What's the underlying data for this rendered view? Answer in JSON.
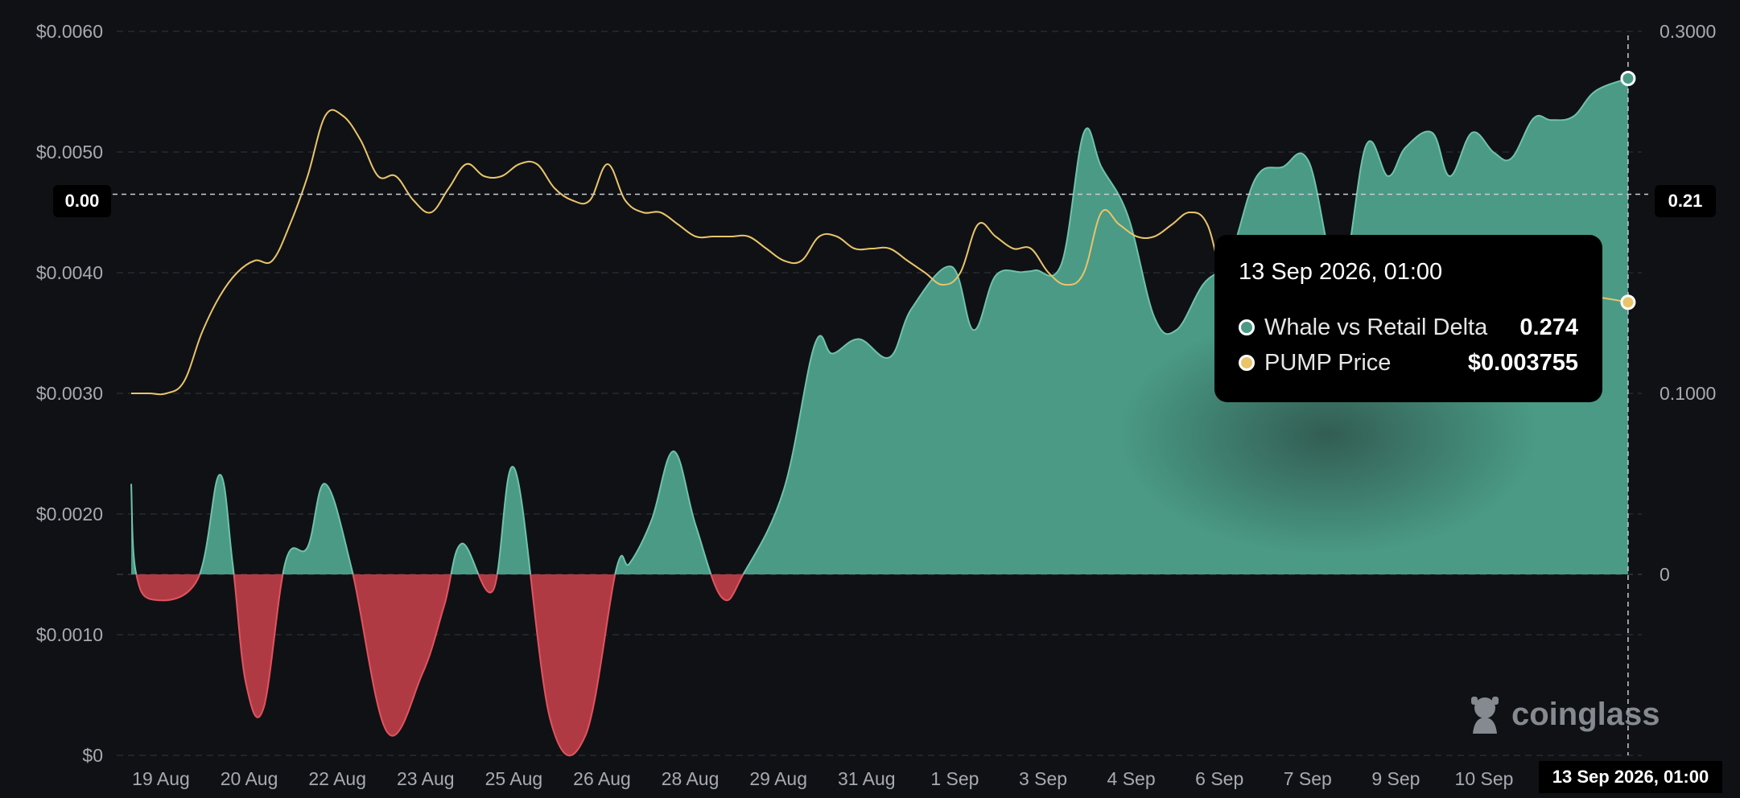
{
  "chart_data": {
    "type": "area",
    "x_ticks": [
      "19 Aug",
      "20 Aug",
      "22 Aug",
      "23 Aug",
      "25 Aug",
      "26 Aug",
      "28 Aug",
      "29 Aug",
      "31 Aug",
      "1 Sep",
      "3 Sep",
      "4 Sep",
      "6 Sep",
      "7 Sep",
      "9 Sep",
      "10 Sep"
    ],
    "left_axis": {
      "ticks": [
        "$0.0060",
        "$0.0050",
        "$0.0040",
        "$0.0030",
        "$0.0020",
        "$0.0010",
        "$0"
      ],
      "ylim": [
        0,
        0.006
      ]
    },
    "right_axis": {
      "ticks": [
        "0.3000",
        "0.1000",
        "0"
      ],
      "ylim": [
        -0.1,
        0.3
      ]
    },
    "grid": true,
    "series": [
      {
        "name": "Whale vs Retail Delta",
        "axis": "right",
        "positive_color": "#4a9a86",
        "negative_color": "#b03a44",
        "x": [
          0,
          0.05,
          0.25,
          0.75,
          1.0,
          1.15,
          1.3,
          1.5,
          1.75,
          2.0,
          2.2,
          2.5,
          2.9,
          3.3,
          3.55,
          3.75,
          4.1,
          4.35,
          4.75,
          5.15,
          5.5,
          5.65,
          5.9,
          6.15,
          6.4,
          6.7,
          6.95,
          7.4,
          7.75,
          7.95,
          8.25,
          8.6,
          8.85,
          9.3,
          9.55,
          9.8,
          10.1,
          10.25,
          10.55,
          10.8,
          11.0,
          11.3,
          11.6,
          11.85,
          12.15,
          12.45,
          12.75,
          13.05,
          13.35,
          13.7,
          14.0,
          14.25,
          14.45,
          14.75,
          14.95,
          15.2,
          15.45,
          15.65,
          15.9,
          16.1,
          16.35,
          16.6,
          16.97
        ],
        "y": [
          0.05,
          0.002,
          -0.014,
          -0.003,
          0.055,
          0.006,
          -0.06,
          -0.074,
          0.007,
          0.015,
          0.05,
          0.003,
          -0.087,
          -0.055,
          -0.017,
          0.017,
          -0.009,
          0.058,
          -0.08,
          -0.089,
          0.003,
          0.006,
          0.03,
          0.068,
          0.027,
          -0.013,
          0.001,
          0.047,
          0.127,
          0.122,
          0.13,
          0.12,
          0.147,
          0.17,
          0.135,
          0.165,
          0.167,
          0.168,
          0.172,
          0.244,
          0.225,
          0.198,
          0.142,
          0.135,
          0.16,
          0.175,
          0.219,
          0.225,
          0.228,
          0.162,
          0.237,
          0.22,
          0.236,
          0.244,
          0.22,
          0.244,
          0.233,
          0.23,
          0.252,
          0.251,
          0.253,
          0.267,
          0.274
        ]
      },
      {
        "name": "PUMP Price",
        "axis": "left",
        "color": "#e9c46a",
        "x": [
          0,
          0.2,
          0.4,
          0.6,
          0.8,
          1.0,
          1.2,
          1.4,
          1.6,
          1.8,
          2.0,
          2.2,
          2.4,
          2.6,
          2.8,
          3.0,
          3.2,
          3.4,
          3.6,
          3.8,
          4.0,
          4.2,
          4.4,
          4.6,
          4.8,
          5.0,
          5.2,
          5.4,
          5.6,
          5.8,
          6.0,
          6.2,
          6.4,
          6.6,
          6.8,
          7.0,
          7.2,
          7.4,
          7.6,
          7.8,
          8.0,
          8.2,
          8.4,
          8.6,
          8.8,
          9.0,
          9.2,
          9.4,
          9.6,
          9.8,
          10.0,
          10.2,
          10.4,
          10.6,
          10.8,
          11.0,
          11.2,
          11.4,
          11.6,
          11.8,
          12.0,
          12.2,
          12.4,
          12.6,
          12.8,
          13.0,
          13.2,
          13.4,
          13.6,
          13.8,
          14.0,
          14.2,
          14.4,
          14.6,
          14.8,
          15.0,
          15.2,
          15.4,
          15.6,
          15.8,
          16.0,
          16.2,
          16.4,
          16.6,
          16.97
        ],
        "y": [
          0.003,
          0.003,
          0.003,
          0.0031,
          0.0035,
          0.0038,
          0.004,
          0.0041,
          0.0041,
          0.0044,
          0.0048,
          0.0053,
          0.0053,
          0.0051,
          0.0048,
          0.0048,
          0.0046,
          0.0045,
          0.0047,
          0.0049,
          0.0048,
          0.0048,
          0.0049,
          0.0049,
          0.0047,
          0.0046,
          0.0046,
          0.0049,
          0.0046,
          0.0045,
          0.0045,
          0.0044,
          0.0043,
          0.0043,
          0.0043,
          0.0043,
          0.0042,
          0.0041,
          0.0041,
          0.0043,
          0.0043,
          0.0042,
          0.0042,
          0.0042,
          0.0041,
          0.004,
          0.0039,
          0.004,
          0.0044,
          0.0043,
          0.0042,
          0.0042,
          0.004,
          0.0039,
          0.004,
          0.0045,
          0.0044,
          0.0043,
          0.0043,
          0.0044,
          0.0045,
          0.0044,
          0.0039,
          0.0039,
          0.0038,
          0.0038,
          0.0038,
          0.0038,
          0.0038,
          0.0038,
          0.0038,
          0.0038,
          0.0038,
          0.0038,
          0.0038,
          0.0038,
          0.0038,
          0.0038,
          0.0038,
          0.0038,
          0.0038,
          0.0038,
          0.0038,
          0.0038,
          0.003755
        ]
      }
    ],
    "crosshair": {
      "x_label": "13 Sep 2026, 01:00",
      "left_label": "0.00",
      "right_label": "0.21",
      "right_value": 0.21,
      "x_index": 16.97
    }
  },
  "tooltip": {
    "title": "13 Sep 2026, 01:00",
    "rows": [
      {
        "name": "Whale vs Retail Delta",
        "value": "0.274",
        "color": "#4a9a86"
      },
      {
        "name": "PUMP Price",
        "value": "$0.003755",
        "color": "#e9c46a"
      }
    ]
  },
  "watermark": {
    "text": "coinglass"
  }
}
